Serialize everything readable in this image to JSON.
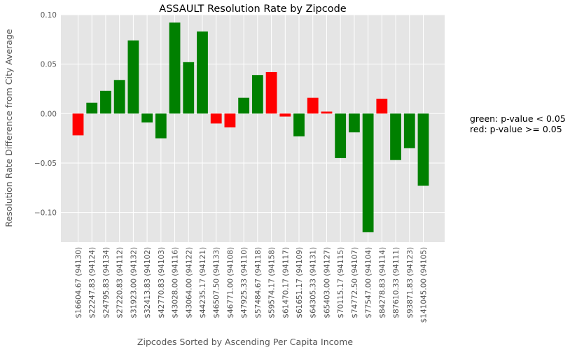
{
  "chart_data": {
    "type": "bar",
    "title": "ASSAULT Resolution Rate by Zipcode",
    "xlabel": "Zipcodes Sorted by Ascending Per Capita Income",
    "ylabel": "Resolution Rate Difference from City Average",
    "ylim": [
      -0.13,
      0.1
    ],
    "yticks": [
      -0.1,
      -0.05,
      0.0,
      0.05,
      0.1
    ],
    "ytick_labels": [
      "−0.10",
      "−0.05",
      "0.00",
      "0.05",
      "0.10"
    ],
    "grid": true,
    "categories": [
      "$16604.67 (94130)",
      "$22247.83 (94124)",
      "$24795.83 (94134)",
      "$27220.83 (94112)",
      "$31923.00 (94132)",
      "$32413.83 (94102)",
      "$42770.83 (94103)",
      "$43028.00 (94116)",
      "$43064.00 (94122)",
      "$44235.17 (94121)",
      "$46507.50 (94133)",
      "$46771.00 (94108)",
      "$47925.33 (94110)",
      "$57484.67 (94118)",
      "$59574.17 (94158)",
      "$61470.17 (94117)",
      "$61651.17 (94109)",
      "$64305.33 (94131)",
      "$65403.00 (94127)",
      "$70115.17 (94115)",
      "$74772.50 (94107)",
      "$77547.00 (94104)",
      "$84278.83 (94114)",
      "$87610.33 (94111)",
      "$93871.83 (94123)",
      "$141045.00 (94105)"
    ],
    "values": [
      -0.022,
      0.011,
      0.023,
      0.034,
      0.074,
      -0.009,
      -0.025,
      0.092,
      0.052,
      0.083,
      -0.01,
      -0.014,
      0.016,
      0.039,
      0.042,
      -0.003,
      -0.023,
      0.016,
      0.002,
      -0.045,
      -0.019,
      -0.12,
      0.015,
      -0.047,
      -0.035,
      -0.073
    ],
    "significance": [
      "red",
      "green",
      "green",
      "green",
      "green",
      "green",
      "green",
      "green",
      "green",
      "green",
      "red",
      "red",
      "green",
      "green",
      "red",
      "red",
      "green",
      "red",
      "red",
      "green",
      "green",
      "green",
      "red",
      "green",
      "green",
      "green"
    ],
    "colors": {
      "green": "#008000",
      "red": "#ff0000",
      "background": "#e5e5e5",
      "grid": "#ffffff"
    },
    "annotations": [
      "green: p-value < 0.05",
      "red: p-value >= 0.05"
    ]
  }
}
